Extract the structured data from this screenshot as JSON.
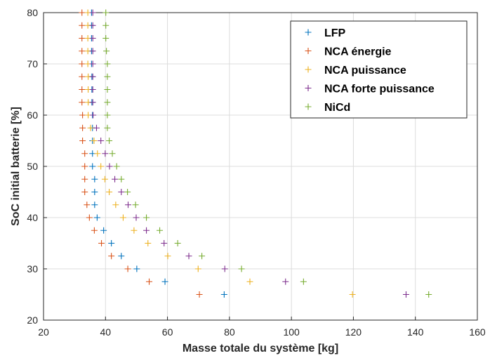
{
  "chart_data": {
    "type": "scatter",
    "xlabel": "Masse totale du système [kg]",
    "ylabel": "SoC initial batterie [%]",
    "xlim": [
      20,
      160
    ],
    "ylim": [
      20,
      80
    ],
    "xticks": [
      "20",
      "40",
      "60",
      "80",
      "100",
      "120",
      "140",
      "160"
    ],
    "yticks": [
      "20",
      "30",
      "40",
      "50",
      "60",
      "70",
      "80"
    ],
    "grid": true,
    "marker": "+",
    "legend_position": "top-right",
    "series": [
      {
        "name": "LFP",
        "color": "#0072BD",
        "points": [
          [
            78.3,
            25
          ],
          [
            59.2,
            27.5
          ],
          [
            50.1,
            30
          ],
          [
            45.1,
            32.5
          ],
          [
            41.9,
            35
          ],
          [
            39.4,
            37.5
          ],
          [
            37.3,
            40
          ],
          [
            36.5,
            42.5
          ],
          [
            36.5,
            45
          ],
          [
            36.5,
            47.5
          ],
          [
            35.8,
            50
          ],
          [
            35.8,
            52.5
          ],
          [
            35.8,
            55
          ],
          [
            35.8,
            57.5
          ],
          [
            35.8,
            60
          ],
          [
            35.6,
            62.5
          ],
          [
            35.6,
            65
          ],
          [
            35.6,
            67.5
          ],
          [
            35.5,
            70
          ],
          [
            35.5,
            72.5
          ],
          [
            35.5,
            75
          ],
          [
            35.5,
            77.5
          ],
          [
            35.5,
            80
          ]
        ]
      },
      {
        "name": "NCA énergie",
        "color": "#D95319",
        "points": [
          [
            70.3,
            25
          ],
          [
            54.1,
            27.5
          ],
          [
            47.2,
            30
          ],
          [
            41.9,
            32.5
          ],
          [
            38.7,
            35
          ],
          [
            36.4,
            37.5
          ],
          [
            34.8,
            40
          ],
          [
            34,
            42.5
          ],
          [
            33.3,
            45
          ],
          [
            33.3,
            47.5
          ],
          [
            33.3,
            50
          ],
          [
            33.3,
            52.5
          ],
          [
            32.6,
            55
          ],
          [
            32.6,
            57.5
          ],
          [
            32.6,
            60
          ],
          [
            32.4,
            62.5
          ],
          [
            32.4,
            65
          ],
          [
            32.4,
            67.5
          ],
          [
            32.4,
            70
          ],
          [
            32.4,
            72.5
          ],
          [
            32.4,
            75
          ],
          [
            32.4,
            77.5
          ],
          [
            32.4,
            80
          ]
        ]
      },
      {
        "name": "NCA puissance",
        "color": "#EDB120",
        "points": [
          [
            119.7,
            25
          ],
          [
            86.6,
            27.5
          ],
          [
            69.9,
            30
          ],
          [
            60.1,
            32.5
          ],
          [
            53.7,
            35
          ],
          [
            49.2,
            37.5
          ],
          [
            45.7,
            40
          ],
          [
            43.3,
            42.5
          ],
          [
            41.2,
            45
          ],
          [
            39.8,
            47.5
          ],
          [
            38.5,
            50
          ],
          [
            37.4,
            52.5
          ],
          [
            36.3,
            55
          ],
          [
            35.2,
            57.5
          ],
          [
            34.4,
            60
          ],
          [
            34.4,
            62.5
          ],
          [
            34.4,
            65
          ],
          [
            34.4,
            67.5
          ],
          [
            34.3,
            70
          ],
          [
            34.3,
            72.5
          ],
          [
            34.3,
            75
          ],
          [
            34.3,
            77.5
          ],
          [
            34.3,
            80
          ]
        ]
      },
      {
        "name": "NCA forte puissance",
        "color": "#7E2F8E",
        "points": [
          [
            137,
            25
          ],
          [
            98.1,
            27.5
          ],
          [
            78.5,
            30
          ],
          [
            66.9,
            32.5
          ],
          [
            58.9,
            35
          ],
          [
            53.2,
            37.5
          ],
          [
            49.9,
            40
          ],
          [
            47.3,
            42.5
          ],
          [
            45.1,
            45
          ],
          [
            43,
            47.5
          ],
          [
            41.3,
            50
          ],
          [
            39.9,
            52.5
          ],
          [
            38.5,
            55
          ],
          [
            37.1,
            57.5
          ],
          [
            36,
            60
          ],
          [
            35.9,
            62.5
          ],
          [
            35.9,
            65
          ],
          [
            35.9,
            67.5
          ],
          [
            35.9,
            70
          ],
          [
            35.9,
            72.5
          ],
          [
            35.9,
            75
          ],
          [
            35.9,
            77.5
          ],
          [
            35.9,
            80
          ]
        ]
      },
      {
        "name": "NiCd",
        "color": "#77AC30",
        "points": [
          [
            144.3,
            25
          ],
          [
            103.9,
            27.5
          ],
          [
            83.9,
            30
          ],
          [
            71.1,
            32.5
          ],
          [
            63.3,
            35
          ],
          [
            57.5,
            37.5
          ],
          [
            53.2,
            40
          ],
          [
            49.7,
            42.5
          ],
          [
            47.1,
            45
          ],
          [
            45.1,
            47.5
          ],
          [
            43.6,
            50
          ],
          [
            42.2,
            52.5
          ],
          [
            41.2,
            55
          ],
          [
            40.6,
            57.5
          ],
          [
            40.6,
            60
          ],
          [
            40.6,
            62.5
          ],
          [
            40.6,
            65
          ],
          [
            40.6,
            67.5
          ],
          [
            40.6,
            70
          ],
          [
            40.3,
            72.5
          ],
          [
            40.1,
            75
          ],
          [
            40.1,
            77.5
          ],
          [
            40.1,
            80
          ]
        ]
      }
    ]
  }
}
